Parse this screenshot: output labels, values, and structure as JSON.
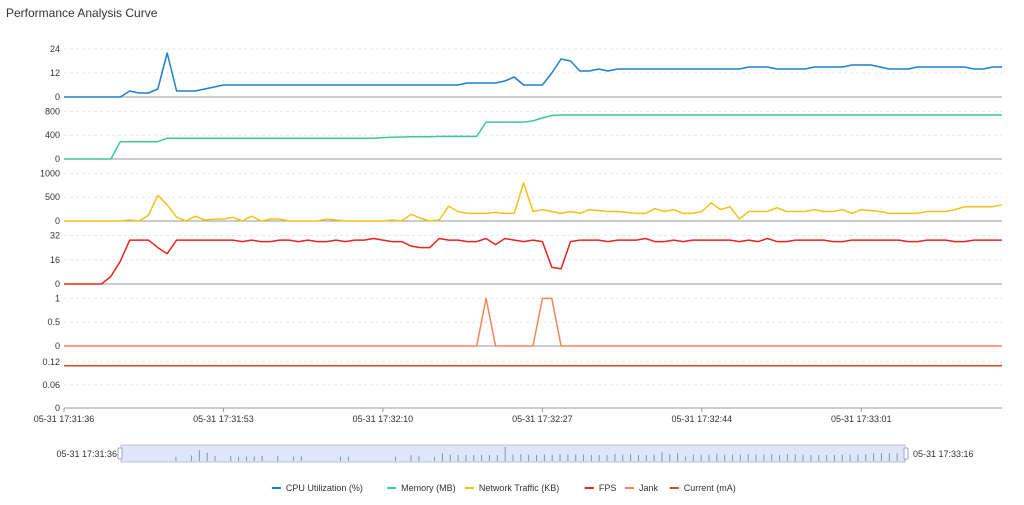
{
  "title": "Performance Analysis Curve",
  "chart_data": {
    "type": "line",
    "x": [
      "05-31 17:31:36",
      "05-31 17:31:37",
      "05-31 17:31:38",
      "05-31 17:31:39",
      "05-31 17:31:40",
      "05-31 17:31:41",
      "05-31 17:31:42",
      "05-31 17:31:43",
      "05-31 17:31:44",
      "05-31 17:31:45",
      "05-31 17:31:46",
      "05-31 17:31:47",
      "05-31 17:31:48",
      "05-31 17:31:49",
      "05-31 17:31:50",
      "05-31 17:31:51",
      "05-31 17:31:52",
      "05-31 17:31:53",
      "05-31 17:31:54",
      "05-31 17:31:55",
      "05-31 17:31:56",
      "05-31 17:31:57",
      "05-31 17:31:58",
      "05-31 17:31:59",
      "05-31 17:32:00",
      "05-31 17:32:01",
      "05-31 17:32:02",
      "05-31 17:32:03",
      "05-31 17:32:04",
      "05-31 17:32:05",
      "05-31 17:32:06",
      "05-31 17:32:07",
      "05-31 17:32:08",
      "05-31 17:32:09",
      "05-31 17:32:10",
      "05-31 17:32:11",
      "05-31 17:32:12",
      "05-31 17:32:13",
      "05-31 17:32:14",
      "05-31 17:32:15",
      "05-31 17:32:16",
      "05-31 17:32:17",
      "05-31 17:32:18",
      "05-31 17:32:19",
      "05-31 17:32:20",
      "05-31 17:32:21",
      "05-31 17:32:22",
      "05-31 17:32:23",
      "05-31 17:32:24",
      "05-31 17:32:25",
      "05-31 17:32:26",
      "05-31 17:32:27",
      "05-31 17:32:28",
      "05-31 17:32:29",
      "05-31 17:32:30",
      "05-31 17:32:31",
      "05-31 17:32:32",
      "05-31 17:32:33",
      "05-31 17:32:34",
      "05-31 17:32:35",
      "05-31 17:32:36",
      "05-31 17:32:37",
      "05-31 17:32:38",
      "05-31 17:32:39",
      "05-31 17:32:40",
      "05-31 17:32:41",
      "05-31 17:32:42",
      "05-31 17:32:43",
      "05-31 17:32:44",
      "05-31 17:32:45",
      "05-31 17:32:46",
      "05-31 17:32:47",
      "05-31 17:32:48",
      "05-31 17:32:49",
      "05-31 17:32:50",
      "05-31 17:32:51",
      "05-31 17:32:52",
      "05-31 17:32:53",
      "05-31 17:32:54",
      "05-31 17:32:55",
      "05-31 17:32:56",
      "05-31 17:32:57",
      "05-31 17:32:58",
      "05-31 17:32:59",
      "05-31 17:33:00",
      "05-31 17:33:01",
      "05-31 17:33:02",
      "05-31 17:33:03",
      "05-31 17:33:04",
      "05-31 17:33:05",
      "05-31 17:33:06",
      "05-31 17:33:07",
      "05-31 17:33:08",
      "05-31 17:33:09",
      "05-31 17:33:10",
      "05-31 17:33:11",
      "05-31 17:33:12",
      "05-31 17:33:13",
      "05-31 17:33:14",
      "05-31 17:33:15",
      "05-31 17:33:16"
    ],
    "x_tick_labels": [
      "05-31 17:31:36",
      "05-31 17:31:53",
      "05-31 17:32:10",
      "05-31 17:32:27",
      "05-31 17:32:44",
      "05-31 17:33:01"
    ],
    "panels": [
      {
        "name": "CPU Utilization (%)",
        "color": "#1f7fcf",
        "yticks": [
          0,
          12,
          24
        ],
        "ylim": [
          0,
          25
        ],
        "values": [
          0,
          0,
          0,
          0,
          0,
          0,
          0,
          3,
          2,
          2,
          4,
          22,
          3,
          3,
          3,
          4,
          5,
          6,
          6,
          6,
          6,
          6,
          6,
          6,
          6,
          6,
          6,
          6,
          6,
          6,
          6,
          6,
          6,
          6,
          6,
          6,
          6,
          6,
          6,
          6,
          6,
          6,
          6,
          7,
          7,
          7,
          7,
          8,
          10,
          6,
          6,
          6,
          12,
          19,
          18,
          13,
          13,
          14,
          13,
          14,
          14,
          14,
          14,
          14,
          14,
          14,
          14,
          14,
          14,
          14,
          14,
          14,
          14,
          15,
          15,
          15,
          14,
          14,
          14,
          14,
          15,
          15,
          15,
          15,
          16,
          16,
          16,
          15,
          14,
          14,
          14,
          15,
          15,
          15,
          15,
          15,
          15,
          14,
          14,
          15,
          15
        ]
      },
      {
        "name": "Memory (MB)",
        "color": "#3cc79c",
        "yticks": [
          0,
          400,
          800
        ],
        "ylim": [
          0,
          840
        ],
        "values": [
          0,
          0,
          0,
          0,
          0,
          0,
          290,
          290,
          290,
          290,
          290,
          350,
          350,
          350,
          350,
          350,
          350,
          350,
          350,
          350,
          350,
          350,
          350,
          350,
          350,
          350,
          350,
          350,
          350,
          350,
          350,
          350,
          350,
          350,
          360,
          365,
          370,
          375,
          375,
          375,
          380,
          380,
          380,
          380,
          380,
          620,
          620,
          620,
          620,
          620,
          640,
          690,
          730,
          740,
          740,
          740,
          740,
          740,
          740,
          740,
          740,
          740,
          740,
          740,
          740,
          740,
          740,
          740,
          740,
          740,
          740,
          740,
          740,
          740,
          740,
          740,
          740,
          740,
          740,
          740,
          740,
          740,
          740,
          740,
          740,
          740,
          740,
          740,
          740,
          740,
          740,
          740,
          740,
          740,
          740,
          740,
          740,
          740,
          740,
          740,
          740
        ]
      },
      {
        "name": "Network Traffic (KB)",
        "color": "#f2c21a",
        "yticks": [
          0,
          500,
          1000
        ],
        "ylim": [
          0,
          1050
        ],
        "values": [
          0,
          0,
          0,
          0,
          0,
          0,
          0,
          20,
          0,
          120,
          540,
          340,
          80,
          0,
          100,
          20,
          40,
          40,
          80,
          0,
          100,
          0,
          40,
          40,
          0,
          0,
          0,
          0,
          40,
          20,
          0,
          0,
          0,
          0,
          0,
          20,
          0,
          140,
          60,
          0,
          20,
          310,
          200,
          160,
          160,
          160,
          180,
          160,
          160,
          800,
          200,
          240,
          200,
          160,
          200,
          160,
          240,
          220,
          200,
          200,
          180,
          160,
          160,
          260,
          200,
          240,
          160,
          160,
          200,
          380,
          240,
          300,
          40,
          200,
          200,
          200,
          280,
          200,
          200,
          200,
          240,
          200,
          200,
          240,
          160,
          240,
          220,
          200,
          160,
          160,
          160,
          160,
          200,
          200,
          200,
          240,
          300,
          300,
          300,
          300,
          340
        ]
      },
      {
        "name": "FPS",
        "color": "#e8241f",
        "yticks": [
          0,
          16,
          32
        ],
        "ylim": [
          0,
          33
        ],
        "values": [
          0,
          0,
          0,
          0,
          0,
          5,
          15,
          29,
          29,
          29,
          24,
          20,
          29,
          29,
          29,
          29,
          29,
          29,
          29,
          28,
          29,
          28,
          28,
          29,
          29,
          28,
          29,
          28,
          28,
          29,
          28,
          29,
          29,
          30,
          29,
          28,
          28,
          25,
          24,
          24,
          30,
          29,
          29,
          28,
          28,
          30,
          26,
          30,
          29,
          28,
          29,
          28,
          11,
          10,
          28,
          29,
          29,
          29,
          28,
          29,
          29,
          29,
          30,
          28,
          28,
          29,
          28,
          29,
          29,
          29,
          29,
          29,
          28,
          29,
          28,
          30,
          28,
          28,
          29,
          29,
          29,
          29,
          28,
          28,
          29,
          29,
          29,
          29,
          29,
          29,
          28,
          28,
          29,
          29,
          29,
          28,
          28,
          29,
          29,
          29,
          29
        ]
      },
      {
        "name": "Jank",
        "color": "#f0875a",
        "yticks": [
          0,
          0.5,
          1
        ],
        "ylim": [
          0,
          1.05
        ],
        "values": [
          0,
          0,
          0,
          0,
          0,
          0,
          0,
          0,
          0,
          0,
          0,
          0,
          0,
          0,
          0,
          0,
          0,
          0,
          0,
          0,
          0,
          0,
          0,
          0,
          0,
          0,
          0,
          0,
          0,
          0,
          0,
          0,
          0,
          0,
          0,
          0,
          0,
          0,
          0,
          0,
          0,
          0,
          0,
          0,
          0,
          1,
          0,
          0,
          0,
          0,
          0,
          1,
          1,
          0,
          0,
          0,
          0,
          0,
          0,
          0,
          0,
          0,
          0,
          0,
          0,
          0,
          0,
          0,
          0,
          0,
          0,
          0,
          0,
          0,
          0,
          0,
          0,
          0,
          0,
          0,
          0,
          0,
          0,
          0,
          0,
          0,
          0,
          0,
          0,
          0,
          0,
          0,
          0,
          0,
          0,
          0,
          0,
          0,
          0,
          0,
          0
        ]
      },
      {
        "name": "Current (mA)",
        "color": "#d7472a",
        "yticks": [
          0,
          0.06,
          0.12
        ],
        "ylim": [
          0,
          0.13
        ],
        "values": [
          0.11,
          0.11,
          0.11,
          0.11,
          0.11,
          0.11,
          0.11,
          0.11,
          0.11,
          0.11,
          0.11,
          0.11,
          0.11,
          0.11,
          0.11,
          0.11,
          0.11,
          0.11,
          0.11,
          0.11,
          0.11,
          0.11,
          0.11,
          0.11,
          0.11,
          0.11,
          0.11,
          0.11,
          0.11,
          0.11,
          0.11,
          0.11,
          0.11,
          0.11,
          0.11,
          0.11,
          0.11,
          0.11,
          0.11,
          0.11,
          0.11,
          0.11,
          0.11,
          0.11,
          0.11,
          0.11,
          0.11,
          0.11,
          0.11,
          0.11,
          0.11,
          0.11,
          0.11,
          0.11,
          0.11,
          0.11,
          0.11,
          0.11,
          0.11,
          0.11,
          0.11,
          0.11,
          0.11,
          0.11,
          0.11,
          0.11,
          0.11,
          0.11,
          0.11,
          0.11,
          0.11,
          0.11,
          0.11,
          0.11,
          0.11,
          0.11,
          0.11,
          0.11,
          0.11,
          0.11,
          0.11,
          0.11,
          0.11,
          0.11,
          0.11,
          0.11,
          0.11,
          0.11,
          0.11,
          0.11,
          0.11,
          0.11,
          0.11,
          0.11,
          0.11,
          0.11,
          0.11,
          0.11,
          0.11,
          0.11,
          0.11
        ]
      }
    ],
    "zoom": {
      "start_label": "05-31 17:31:36",
      "end_label": "05-31 17:33:16"
    },
    "grid": true,
    "legend_position": "bottom-center"
  }
}
